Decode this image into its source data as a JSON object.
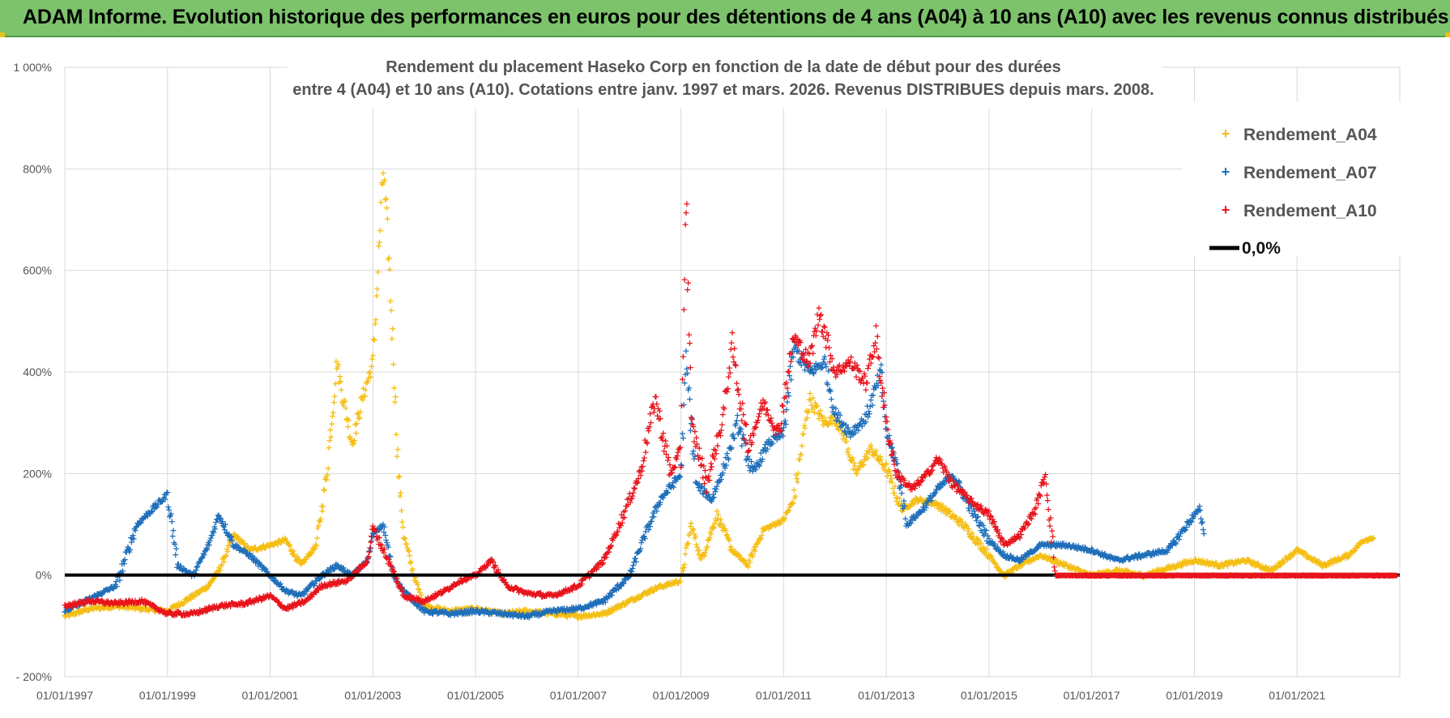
{
  "banner": {
    "title": "ADAM Informe. Evolution historique des performances en euros pour des détentions de 4 ans (A04) à 10 ans (A10) avec les revenus connus distribués"
  },
  "chart_data": {
    "type": "scatter",
    "title_line1": "Rendement du placement Haseko Corp en fonction de la date de début pour des durées",
    "title_line2": "entre 4 (A04) et 10 ans (A10). Cotations entre janv. 1997 et mars. 2026. Revenus DISTRIBUES depuis mars. 2008.",
    "xlabel": "",
    "ylabel": "",
    "xlim": [
      "01/01/1997",
      "31/12/2022"
    ],
    "ylim": [
      -200,
      1000
    ],
    "x_ticks": [
      "01/01/1997",
      "01/01/1999",
      "01/01/2001",
      "01/01/2003",
      "01/01/2005",
      "01/01/2007",
      "01/01/2009",
      "01/01/2011",
      "01/01/2013",
      "01/01/2015",
      "01/01/2017",
      "01/01/2019",
      "01/01/2021"
    ],
    "y_ticks": [
      "- 200%",
      "0%",
      "200%",
      "400%",
      "600%",
      "800%",
      "1 000%"
    ],
    "y_tick_values": [
      -200,
      0,
      200,
      400,
      600,
      800,
      1000
    ],
    "grid": true,
    "legend_position": "right",
    "series": [
      {
        "name": "Rendement_A04",
        "color": "#f5be14",
        "marker": "+",
        "points": [
          [
            1997.0,
            -80
          ],
          [
            1997.5,
            -65
          ],
          [
            1998.0,
            -60
          ],
          [
            1998.5,
            -65
          ],
          [
            1999.0,
            -70
          ],
          [
            1999.5,
            -40
          ],
          [
            1999.8,
            -20
          ],
          [
            2000.0,
            10
          ],
          [
            2000.3,
            80
          ],
          [
            2000.6,
            50
          ],
          [
            2001.0,
            60
          ],
          [
            2001.3,
            70
          ],
          [
            2001.6,
            20
          ],
          [
            2001.9,
            60
          ],
          [
            2002.1,
            200
          ],
          [
            2002.3,
            420
          ],
          [
            2002.4,
            360
          ],
          [
            2002.6,
            260
          ],
          [
            2002.8,
            350
          ],
          [
            2003.0,
            420
          ],
          [
            2003.1,
            600
          ],
          [
            2003.2,
            800
          ],
          [
            2003.3,
            650
          ],
          [
            2003.4,
            430
          ],
          [
            2003.5,
            200
          ],
          [
            2003.6,
            80
          ],
          [
            2003.8,
            0
          ],
          [
            2004.0,
            -60
          ],
          [
            2004.5,
            -70
          ],
          [
            2005.0,
            -65
          ],
          [
            2005.5,
            -75
          ],
          [
            2006.0,
            -70
          ],
          [
            2006.5,
            -75
          ],
          [
            2007.0,
            -80
          ],
          [
            2007.5,
            -75
          ],
          [
            2008.0,
            -50
          ],
          [
            2008.5,
            -25
          ],
          [
            2009.0,
            -10
          ],
          [
            2009.2,
            100
          ],
          [
            2009.4,
            30
          ],
          [
            2009.7,
            120
          ],
          [
            2010.0,
            50
          ],
          [
            2010.3,
            20
          ],
          [
            2010.6,
            90
          ],
          [
            2011.0,
            110
          ],
          [
            2011.2,
            150
          ],
          [
            2011.5,
            350
          ],
          [
            2011.8,
            300
          ],
          [
            2012.0,
            310
          ],
          [
            2012.2,
            270
          ],
          [
            2012.4,
            200
          ],
          [
            2012.7,
            250
          ],
          [
            2013.0,
            210
          ],
          [
            2013.3,
            130
          ],
          [
            2013.6,
            150
          ],
          [
            2014.0,
            140
          ],
          [
            2014.5,
            100
          ],
          [
            2015.0,
            40
          ],
          [
            2015.3,
            0
          ],
          [
            2015.6,
            20
          ],
          [
            2016.0,
            40
          ],
          [
            2016.5,
            20
          ],
          [
            2017.0,
            0
          ],
          [
            2017.5,
            10
          ],
          [
            2018.0,
            0
          ],
          [
            2018.5,
            15
          ],
          [
            2019.0,
            30
          ],
          [
            2019.5,
            20
          ],
          [
            2020.0,
            30
          ],
          [
            2020.5,
            10
          ],
          [
            2021.0,
            50
          ],
          [
            2021.5,
            20
          ],
          [
            2022.0,
            40
          ],
          [
            2022.3,
            70
          ],
          [
            2022.5,
            75
          ]
        ]
      },
      {
        "name": "Rendement_A07",
        "color": "#1f6fba",
        "marker": "+",
        "points": [
          [
            1997.0,
            -70
          ],
          [
            1997.5,
            -45
          ],
          [
            1998.0,
            -20
          ],
          [
            1998.4,
            100
          ],
          [
            1998.7,
            130
          ],
          [
            1999.0,
            160
          ],
          [
            1999.2,
            20
          ],
          [
            1999.5,
            0
          ],
          [
            1999.8,
            60
          ],
          [
            2000.0,
            120
          ],
          [
            2000.3,
            60
          ],
          [
            2000.6,
            40
          ],
          [
            2001.0,
            0
          ],
          [
            2001.3,
            -30
          ],
          [
            2001.6,
            -40
          ],
          [
            2002.0,
            0
          ],
          [
            2002.3,
            20
          ],
          [
            2002.6,
            0
          ],
          [
            2002.9,
            30
          ],
          [
            2003.0,
            80
          ],
          [
            2003.2,
            100
          ],
          [
            2003.4,
            0
          ],
          [
            2003.6,
            -30
          ],
          [
            2004.0,
            -70
          ],
          [
            2004.5,
            -75
          ],
          [
            2005.0,
            -70
          ],
          [
            2005.5,
            -75
          ],
          [
            2006.0,
            -80
          ],
          [
            2006.5,
            -70
          ],
          [
            2007.0,
            -65
          ],
          [
            2007.5,
            -50
          ],
          [
            2008.0,
            0
          ],
          [
            2008.3,
            80
          ],
          [
            2008.6,
            150
          ],
          [
            2009.0,
            200
          ],
          [
            2009.1,
            420
          ],
          [
            2009.3,
            180
          ],
          [
            2009.6,
            150
          ],
          [
            2009.9,
            230
          ],
          [
            2010.1,
            300
          ],
          [
            2010.4,
            200
          ],
          [
            2010.7,
            260
          ],
          [
            2011.0,
            280
          ],
          [
            2011.2,
            450
          ],
          [
            2011.5,
            400
          ],
          [
            2011.8,
            420
          ],
          [
            2012.0,
            320
          ],
          [
            2012.3,
            280
          ],
          [
            2012.6,
            310
          ],
          [
            2012.9,
            400
          ],
          [
            2013.0,
            280
          ],
          [
            2013.2,
            220
          ],
          [
            2013.4,
            100
          ],
          [
            2013.7,
            130
          ],
          [
            2014.0,
            170
          ],
          [
            2014.3,
            200
          ],
          [
            2014.6,
            140
          ],
          [
            2015.0,
            70
          ],
          [
            2015.3,
            40
          ],
          [
            2015.6,
            30
          ],
          [
            2016.0,
            60
          ],
          [
            2016.5,
            60
          ],
          [
            2017.0,
            50
          ],
          [
            2017.5,
            30
          ],
          [
            2018.0,
            40
          ],
          [
            2018.5,
            50
          ],
          [
            2019.0,
            120
          ],
          [
            2019.1,
            130
          ],
          [
            2019.2,
            80
          ]
        ]
      },
      {
        "name": "Rendement_A10",
        "color": "#e8141c",
        "marker": "+",
        "points": [
          [
            1997.0,
            -60
          ],
          [
            1997.5,
            -50
          ],
          [
            1998.0,
            -55
          ],
          [
            1998.5,
            -50
          ],
          [
            1999.0,
            -75
          ],
          [
            1999.5,
            -75
          ],
          [
            2000.0,
            -60
          ],
          [
            2000.5,
            -55
          ],
          [
            2001.0,
            -40
          ],
          [
            2001.3,
            -65
          ],
          [
            2001.7,
            -50
          ],
          [
            2002.0,
            -20
          ],
          [
            2002.5,
            -10
          ],
          [
            2002.9,
            30
          ],
          [
            2003.0,
            95
          ],
          [
            2003.3,
            30
          ],
          [
            2003.6,
            -40
          ],
          [
            2004.0,
            -50
          ],
          [
            2004.4,
            -30
          ],
          [
            2004.7,
            -10
          ],
          [
            2005.0,
            0
          ],
          [
            2005.3,
            30
          ],
          [
            2005.6,
            -20
          ],
          [
            2006.0,
            -35
          ],
          [
            2006.5,
            -40
          ],
          [
            2007.0,
            -20
          ],
          [
            2007.5,
            30
          ],
          [
            2007.8,
            100
          ],
          [
            2008.2,
            200
          ],
          [
            2008.5,
            350
          ],
          [
            2008.8,
            200
          ],
          [
            2009.0,
            250
          ],
          [
            2009.1,
            750
          ],
          [
            2009.2,
            300
          ],
          [
            2009.5,
            180
          ],
          [
            2009.8,
            300
          ],
          [
            2010.0,
            450
          ],
          [
            2010.3,
            250
          ],
          [
            2010.6,
            340
          ],
          [
            2010.9,
            280
          ],
          [
            2011.2,
            470
          ],
          [
            2011.5,
            420
          ],
          [
            2011.7,
            520
          ],
          [
            2012.0,
            400
          ],
          [
            2012.3,
            420
          ],
          [
            2012.6,
            380
          ],
          [
            2012.8,
            470
          ],
          [
            2013.0,
            300
          ],
          [
            2013.2,
            200
          ],
          [
            2013.5,
            170
          ],
          [
            2013.8,
            200
          ],
          [
            2014.0,
            230
          ],
          [
            2014.3,
            180
          ],
          [
            2014.6,
            150
          ],
          [
            2015.0,
            120
          ],
          [
            2015.3,
            60
          ],
          [
            2015.6,
            80
          ],
          [
            2015.9,
            130
          ],
          [
            2016.1,
            200
          ],
          [
            2016.3,
            0
          ],
          [
            2017.0,
            0
          ],
          [
            2018.0,
            0
          ],
          [
            2019.0,
            0
          ],
          [
            2020.0,
            0
          ],
          [
            2021.0,
            0
          ],
          [
            2022.0,
            0
          ],
          [
            2022.9,
            0
          ]
        ]
      }
    ],
    "reference_line": {
      "name": "0,0%",
      "y": 0,
      "color": "#000000"
    }
  }
}
